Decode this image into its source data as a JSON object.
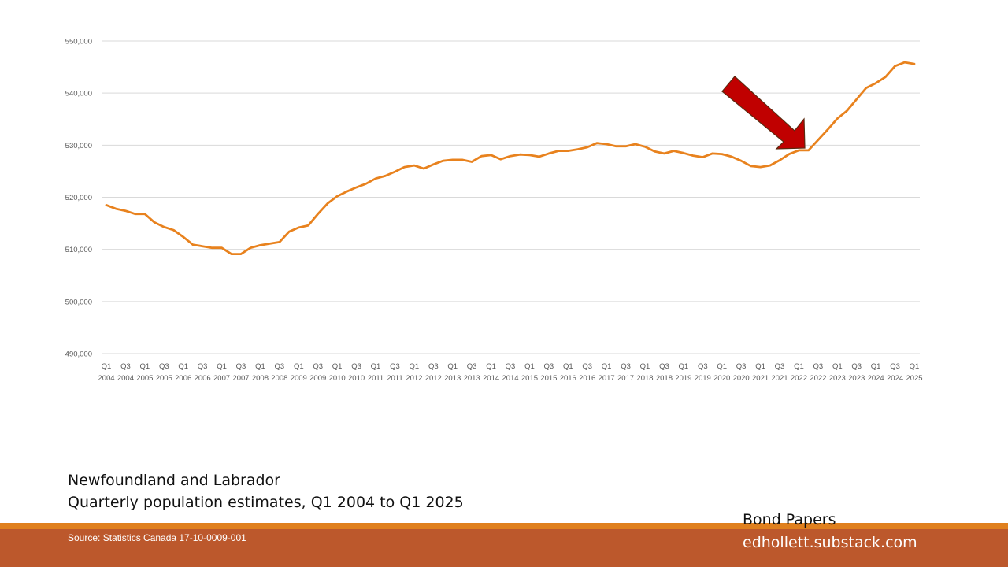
{
  "colors": {
    "line": "#e8821e",
    "grid": "#d9d9d9",
    "axis_text": "#595959",
    "arrow": "#c00000",
    "footer_band": "#bc582c",
    "footer_accent": "#e0801e"
  },
  "icons": {
    "arrow": "red-arrow-icon"
  },
  "caption": {
    "line1": "Newfoundland and Labrador",
    "line2": "Quarterly population estimates, Q1 2004 to Q1 2025"
  },
  "footer": {
    "source": "Source: Statistics Canada 17-10-0009-001",
    "brand1": "Bond Papers",
    "brand2": "edhollett.substack.com"
  },
  "chart_data": {
    "type": "line",
    "title": "",
    "xlabel": "",
    "ylabel": "",
    "ylim": [
      490000,
      550000
    ],
    "y_ticks": [
      "490,000",
      "500,000",
      "510,000",
      "520,000",
      "530,000",
      "540,000",
      "550,000"
    ],
    "grid": true,
    "x_tick_labels": [
      [
        "Q1",
        "2004"
      ],
      [
        "Q3",
        "2004"
      ],
      [
        "Q1",
        "2005"
      ],
      [
        "Q3",
        "2005"
      ],
      [
        "Q1",
        "2006"
      ],
      [
        "Q3",
        "2006"
      ],
      [
        "Q1",
        "2007"
      ],
      [
        "Q3",
        "2007"
      ],
      [
        "Q1",
        "2008"
      ],
      [
        "Q3",
        "2008"
      ],
      [
        "Q1",
        "2009"
      ],
      [
        "Q3",
        "2009"
      ],
      [
        "Q1",
        "2010"
      ],
      [
        "Q3",
        "2010"
      ],
      [
        "Q1",
        "2011"
      ],
      [
        "Q3",
        "2011"
      ],
      [
        "Q1",
        "2012"
      ],
      [
        "Q3",
        "2012"
      ],
      [
        "Q1",
        "2013"
      ],
      [
        "Q3",
        "2013"
      ],
      [
        "Q1",
        "2014"
      ],
      [
        "Q3",
        "2014"
      ],
      [
        "Q1",
        "2015"
      ],
      [
        "Q3",
        "2015"
      ],
      [
        "Q1",
        "2016"
      ],
      [
        "Q3",
        "2016"
      ],
      [
        "Q1",
        "2017"
      ],
      [
        "Q3",
        "2017"
      ],
      [
        "Q1",
        "2018"
      ],
      [
        "Q3",
        "2018"
      ],
      [
        "Q1",
        "2019"
      ],
      [
        "Q3",
        "2019"
      ],
      [
        "Q1",
        "2020"
      ],
      [
        "Q3",
        "2020"
      ],
      [
        "Q1",
        "2021"
      ],
      [
        "Q3",
        "2021"
      ],
      [
        "Q1",
        "2022"
      ],
      [
        "Q3",
        "2022"
      ],
      [
        "Q1",
        "2023"
      ],
      [
        "Q3",
        "2023"
      ],
      [
        "Q1",
        "2024"
      ],
      [
        "Q3",
        "2024"
      ],
      [
        "Q1",
        "2025"
      ]
    ],
    "series": [
      {
        "values": [
          518500,
          517800,
          517400,
          516800,
          516800,
          515200,
          514300,
          513700,
          512400,
          510900,
          510600,
          510300,
          510300,
          509100,
          509100,
          510300,
          510800,
          511100,
          511400,
          513400,
          514200,
          514600,
          516800,
          518800,
          520200,
          521100,
          521900,
          522600,
          523600,
          524100,
          524900,
          525800,
          526100,
          525500,
          526300,
          527000,
          527200,
          527200,
          526800,
          527900,
          528100,
          527300,
          527900,
          528200,
          528100,
          527800,
          528400,
          528900,
          528900,
          529200,
          529600,
          530400,
          530200,
          529800,
          529800,
          530200,
          529700,
          528800,
          528400,
          528900,
          528500,
          528000,
          527700,
          528400,
          528300,
          527800,
          527000,
          526000,
          525800,
          526100,
          527100,
          528300,
          529000,
          529000,
          531000,
          533000,
          535100,
          536600,
          538800,
          541000,
          541900,
          543100,
          545200,
          545900,
          545600
        ]
      }
    ]
  }
}
